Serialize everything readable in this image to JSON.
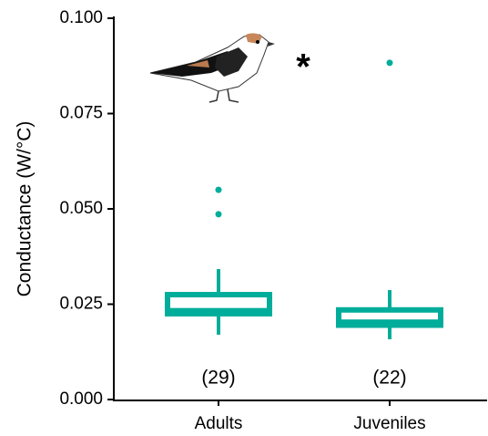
{
  "chart_data": {
    "type": "box",
    "y_label": "Conductance (W/°C)",
    "categories": [
      "Adults",
      "Juveniles"
    ],
    "color": "#00ad9a",
    "boxes": [
      {
        "whisker_low": 0.017,
        "q1": 0.0225,
        "median": 0.024,
        "q3": 0.0275,
        "whisker_high": 0.0342,
        "outliers": [
          0.055,
          0.0486
        ]
      },
      {
        "whisker_low": 0.0158,
        "q1": 0.0195,
        "median": 0.021,
        "q3": 0.0235,
        "whisker_high": 0.0287,
        "outliers": [
          0.0883
        ]
      }
    ],
    "count_labels": [
      "(29)",
      "(22)"
    ],
    "significance": "*",
    "ylim": [
      0,
      0.1
    ],
    "yticks": [
      {
        "value": 0,
        "label": "0.000"
      },
      {
        "value": 0.025,
        "label": "0.025"
      },
      {
        "value": 0.05,
        "label": "0.050"
      },
      {
        "value": 0.075,
        "label": "0.075"
      },
      {
        "value": 0.1,
        "label": "0.100"
      }
    ]
  }
}
